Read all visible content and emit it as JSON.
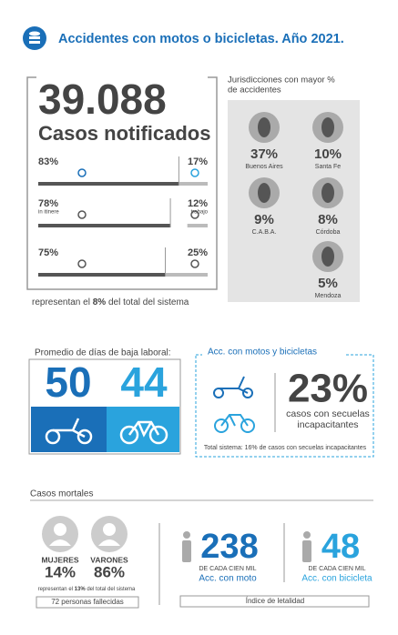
{
  "header": {
    "title": "Accidentes con motos o bicicletas. Año 2021."
  },
  "cases": {
    "total": "39.088",
    "label": "Casos notificados",
    "rows": [
      {
        "left": {
          "value": 83,
          "label": "83%"
        },
        "right": {
          "value": 17,
          "label": "17%"
        }
      },
      {
        "left": {
          "value": 78,
          "label": "78%"
        },
        "left_note": "in itinere",
        "right": {
          "value": 12,
          "label": "12%"
        },
        "right_note": "trabajo"
      },
      {
        "left": {
          "value": 75,
          "label": "75%"
        },
        "right": {
          "value": 25,
          "label": "25%"
        }
      }
    ],
    "note": [
      "representan el ",
      "8%",
      " del total del sistema"
    ]
  },
  "jurisdictions": {
    "title": [
      "Jurisdicciones con mayor %",
      "de accidentes"
    ],
    "items": [
      {
        "pct": "37%",
        "name": "Buenos Aires"
      },
      {
        "pct": "10%",
        "name": "Santa Fe"
      },
      {
        "pct": "9%",
        "name": "C.A.B.A."
      },
      {
        "pct": "8%",
        "name": "Córdoba"
      },
      {
        "pct": "5%",
        "name": "Mendoza"
      }
    ]
  },
  "leave": {
    "title": "Promedio de días de baja laboral:",
    "moto": "50",
    "bike": "44"
  },
  "sequelae": {
    "title": "Acc. con motos y bicicletas",
    "pct": "23%",
    "text": [
      "casos con secuelas",
      "incapacitantes"
    ],
    "note": "Total sistema: 16% de casos con secuelas incapacitantes"
  },
  "deaths": {
    "title": "Casos mortales",
    "women": {
      "label": "MUJERES",
      "pct": "14%"
    },
    "men": {
      "label": "VARONES",
      "pct": "86%"
    },
    "note": [
      "representan el ",
      "13%",
      " del total del sistema"
    ],
    "count": "72 personas fallecidas",
    "moto": {
      "value": "238",
      "per": "DE CADA CIEN MIL",
      "label": "Acc. con moto"
    },
    "bike": {
      "value": "48",
      "per": "DE CADA CIEN MIL",
      "label": "Acc. con bicicleta"
    },
    "index": "Índice de letalidad"
  }
}
